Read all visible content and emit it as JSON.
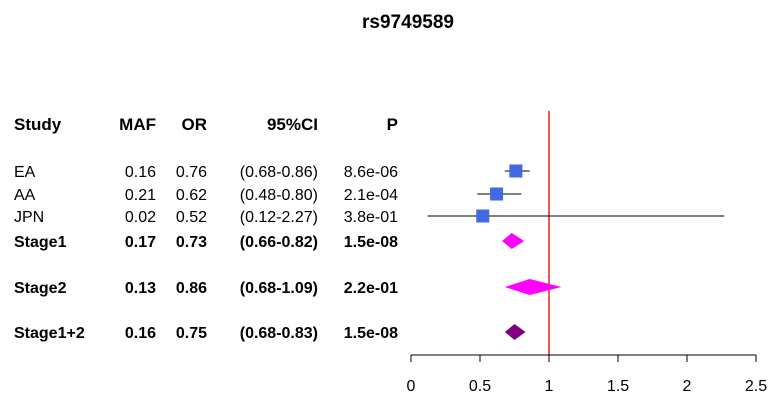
{
  "chart_data": {
    "type": "forest",
    "title": "rs9749589",
    "columns": [
      "Study",
      "MAF",
      "OR",
      "95%CI",
      "P"
    ],
    "rows": [
      {
        "study": "EA",
        "maf": "0.16",
        "or_label": "0.76",
        "ci_label": "(0.68-0.86)",
        "p": "8.6e-06",
        "or": 0.76,
        "ci_low": 0.68,
        "ci_high": 0.86,
        "bold": false,
        "marker": "square",
        "color": "#4169E1"
      },
      {
        "study": "AA",
        "maf": "0.21",
        "or_label": "0.62",
        "ci_label": "(0.48-0.80)",
        "p": "2.1e-04",
        "or": 0.62,
        "ci_low": 0.48,
        "ci_high": 0.8,
        "bold": false,
        "marker": "square",
        "color": "#4169E1"
      },
      {
        "study": "JPN",
        "maf": "0.02",
        "or_label": "0.52",
        "ci_label": "(0.12-2.27)",
        "p": "3.8e-01",
        "or": 0.52,
        "ci_low": 0.12,
        "ci_high": 2.27,
        "bold": false,
        "marker": "square",
        "color": "#4169E1"
      },
      {
        "study": "Stage1",
        "maf": "0.17",
        "or_label": "0.73",
        "ci_label": "(0.66-0.82)",
        "p": "1.5e-08",
        "or": 0.73,
        "ci_low": 0.66,
        "ci_high": 0.82,
        "bold": true,
        "marker": "diamond",
        "color": "#FF00FF"
      },
      {
        "study": "Stage2",
        "maf": "0.13",
        "or_label": "0.86",
        "ci_label": "(0.68-1.09)",
        "p": "2.2e-01",
        "or": 0.86,
        "ci_low": 0.68,
        "ci_high": 1.09,
        "bold": true,
        "marker": "diamond",
        "color": "#FF00FF"
      },
      {
        "study": "Stage1+2",
        "maf": "0.16",
        "or_label": "0.75",
        "ci_label": "(0.68-0.83)",
        "p": "1.5e-08",
        "or": 0.75,
        "ci_low": 0.68,
        "ci_high": 0.83,
        "bold": true,
        "marker": "diamond",
        "color": "#800080"
      }
    ],
    "x_ticks": [
      "0",
      "0.5",
      "1",
      "1.5",
      "2",
      "2.5"
    ],
    "xlim": [
      0,
      2.5
    ],
    "reference_line": 1,
    "reference_color": "#E00000",
    "grid": false
  }
}
